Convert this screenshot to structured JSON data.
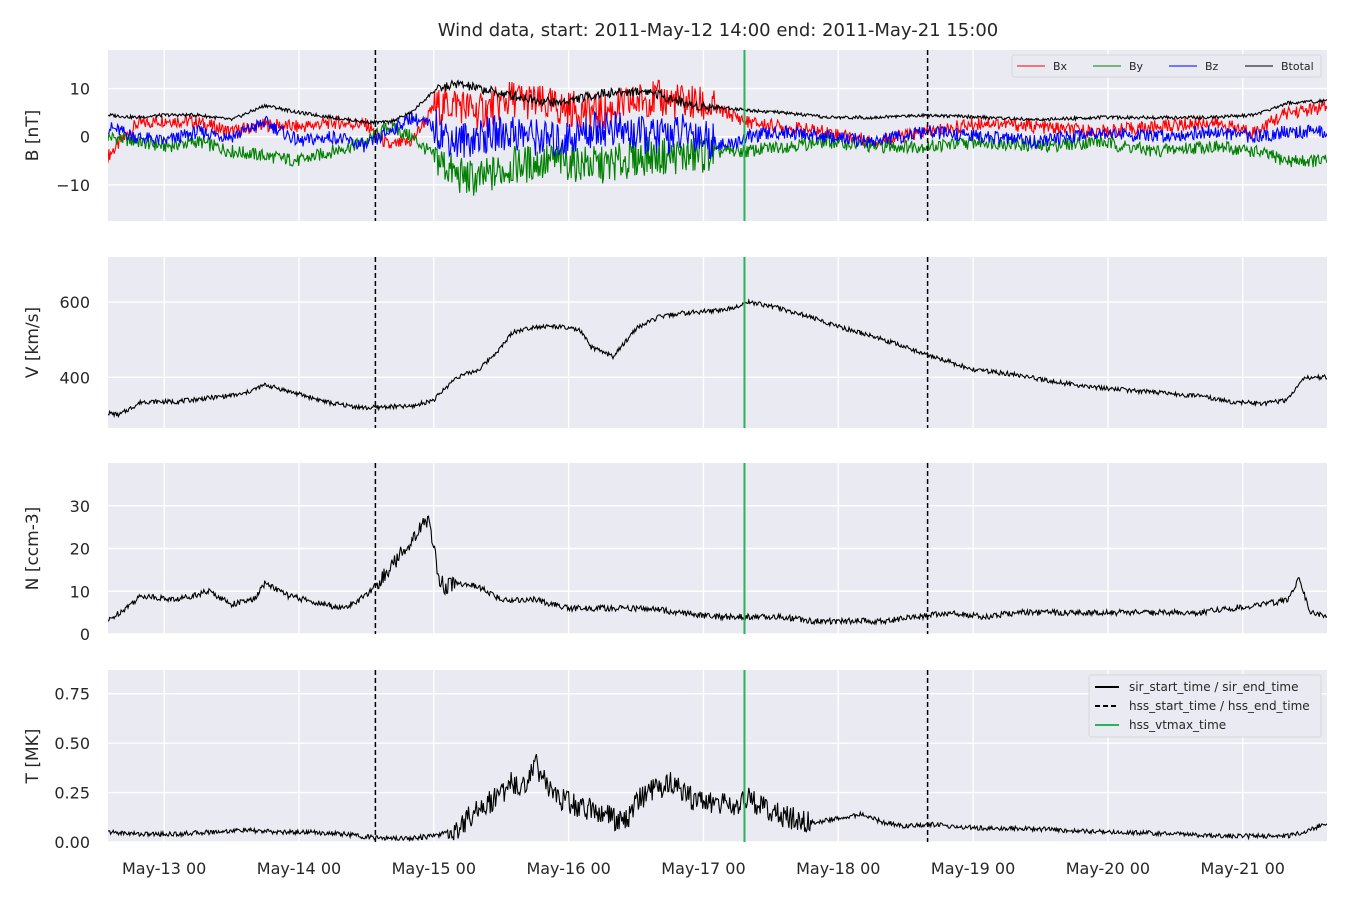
{
  "chart_data": {
    "type": "line",
    "title": "Wind data, start: 2011-May-12 14:00  end: 2011-May-21 15:00",
    "x_ticks": [
      "May-13 00",
      "May-14 00",
      "May-15 00",
      "May-16 00",
      "May-17 00",
      "May-18 00",
      "May-19 00",
      "May-20 00",
      "May-21 00"
    ],
    "x_range_hours": [
      0,
      217
    ],
    "x_tick_hours": [
      10,
      34,
      58,
      82,
      106,
      130,
      154,
      178,
      202
    ],
    "events": [
      {
        "name": "hss_start_time / hss_end_time",
        "hours": [
          47.6,
          145.9
        ],
        "style": "dashed",
        "color": "#000000"
      },
      {
        "name": "hss_vtmax_time",
        "hours": [
          113.3
        ],
        "style": "solid",
        "color": "#2bb35a"
      }
    ],
    "panels": [
      {
        "id": "B",
        "ylabel": "B [nT]",
        "ylim": [
          -17.5,
          18
        ],
        "yticks": [
          -10,
          0,
          10
        ],
        "ytick_labels": [
          "−10",
          "0",
          "10"
        ],
        "legend_position": "top-right",
        "series": [
          {
            "name": "Bx",
            "color": "#ff0000",
            "hours": [
              0,
              5,
              10,
              16,
              22,
              28,
              34,
              40,
              46,
              50,
              54,
              58,
              62,
              66,
              72,
              80,
              88,
              96,
              104,
              110,
              114,
              120,
              128,
              136,
              146,
              156,
              166,
              176,
              186,
              196,
              204,
              210,
              217
            ],
            "values": [
              -4,
              2.5,
              3.5,
              3,
              1,
              2.5,
              2,
              3,
              2.5,
              -2,
              -1,
              6,
              7,
              5,
              8,
              6,
              5,
              8,
              7,
              5,
              3,
              2,
              1,
              -1,
              1,
              3,
              2,
              1,
              2,
              3,
              1,
              5,
              6
            ]
          },
          {
            "name": "By",
            "color": "#008000",
            "hours": [
              0,
              5,
              10,
              16,
              22,
              28,
              34,
              40,
              46,
              50,
              54,
              58,
              62,
              66,
              72,
              80,
              88,
              96,
              104,
              110,
              114,
              120,
              128,
              136,
              146,
              156,
              166,
              176,
              186,
              196,
              204,
              210,
              217
            ],
            "values": [
              0,
              -1,
              -2,
              -1,
              -3,
              -4,
              -5,
              -3,
              -1,
              2,
              0,
              -4,
              -8,
              -9,
              -6,
              -5,
              -6,
              -4,
              -4,
              -3,
              -3,
              -2,
              -1,
              -2,
              -2,
              -1,
              -2,
              -1,
              -3,
              -2,
              -3,
              -5,
              -5
            ]
          },
          {
            "name": "Bz",
            "color": "#0000ff",
            "hours": [
              0,
              5,
              10,
              16,
              22,
              28,
              34,
              40,
              46,
              50,
              54,
              58,
              62,
              66,
              72,
              80,
              88,
              96,
              104,
              110,
              114,
              120,
              128,
              136,
              146,
              156,
              166,
              176,
              186,
              196,
              204,
              210,
              217
            ],
            "values": [
              2,
              0,
              -1,
              1,
              0,
              3,
              -1,
              0,
              -2,
              1,
              4,
              2,
              -1,
              0,
              1,
              -1,
              2,
              0,
              1,
              -2,
              0,
              1,
              0,
              -1,
              1,
              0,
              -1,
              1,
              0,
              1,
              0,
              1,
              1
            ]
          },
          {
            "name": "Btotal",
            "color": "#000000",
            "hours": [
              0,
              5,
              10,
              16,
              22,
              28,
              34,
              40,
              46,
              50,
              54,
              58,
              62,
              66,
              72,
              80,
              88,
              96,
              104,
              110,
              114,
              120,
              128,
              136,
              146,
              156,
              166,
              176,
              186,
              196,
              204,
              210,
              217
            ],
            "values": [
              4.5,
              4,
              4.5,
              4.5,
              3.5,
              6.5,
              5,
              4,
              3,
              3,
              5,
              9.5,
              11,
              10,
              8.5,
              7,
              9,
              9.5,
              6.5,
              6,
              5.5,
              5,
              4,
              4,
              4.5,
              4,
              3.5,
              4,
              4,
              4,
              4.5,
              7,
              7.5
            ]
          }
        ]
      },
      {
        "id": "V",
        "ylabel": "V [km/s]",
        "ylim": [
          265,
          720
        ],
        "yticks": [
          400,
          600
        ],
        "ytick_labels": [
          "400",
          "600"
        ],
        "series": [
          {
            "name": "V",
            "color": "#000000",
            "hours": [
              0,
              2,
              6,
              12,
              18,
              24,
              28,
              34,
              40,
              46,
              50,
              54,
              58,
              62,
              66,
              70,
              72,
              76,
              80,
              84,
              86,
              90,
              94,
              98,
              102,
              106,
              110,
              114,
              118,
              124,
              130,
              136,
              142,
              148,
              154,
              160,
              166,
              172,
              178,
              186,
              194,
              200,
              206,
              210,
              213,
              217
            ],
            "values": [
              305,
              300,
              335,
              335,
              345,
              355,
              380,
              355,
              330,
              318,
              322,
              322,
              340,
              400,
              420,
              480,
              520,
              535,
              535,
              525,
              480,
              455,
              530,
              560,
              570,
              575,
              580,
              600,
              590,
              565,
              535,
              510,
              480,
              450,
              420,
              410,
              395,
              380,
              370,
              360,
              350,
              335,
              330,
              340,
              400,
              400
            ]
          }
        ]
      },
      {
        "id": "N",
        "ylabel": "N [ccm-3]",
        "ylim": [
          0,
          40
        ],
        "yticks": [
          0,
          10,
          20,
          30
        ],
        "ytick_labels": [
          "0",
          "10",
          "20",
          "30"
        ],
        "series": [
          {
            "name": "N",
            "color": "#000000",
            "hours": [
              0,
              3,
              6,
              12,
              18,
              22,
              26,
              28,
              32,
              38,
              42,
              46,
              48,
              50,
              54,
              57,
              59,
              60,
              62,
              66,
              70,
              76,
              82,
              90,
              96,
              102,
              108,
              114,
              120,
              126,
              132,
              138,
              144,
              150,
              156,
              162,
              170,
              178,
              186,
              194,
              200,
              206,
              210,
              212,
              214,
              217
            ],
            "values": [
              3,
              6,
              9,
              8,
              10,
              7,
              8,
              12,
              9,
              7,
              6,
              9,
              12,
              15,
              22,
              27,
              13,
              11,
              12,
              11,
              8,
              8,
              6,
              6,
              6,
              5,
              4,
              4,
              4,
              3,
              3,
              3,
              4,
              5,
              4,
              5,
              5,
              5,
              5,
              5,
              6,
              7,
              8,
              13,
              5,
              4
            ]
          }
        ]
      },
      {
        "id": "T",
        "ylabel": "T [MK]",
        "ylim": [
          0,
          0.87
        ],
        "yticks": [
          0.0,
          0.25,
          0.5,
          0.75
        ],
        "ytick_labels": [
          "0.00",
          "0.25",
          "0.50",
          "0.75"
        ],
        "legend_position": "top-right",
        "legend": [
          "sir_start_time / sir_end_time",
          "hss_start_time / hss_end_time",
          "hss_vtmax_time"
        ],
        "series": [
          {
            "name": "T",
            "color": "#000000",
            "hours": [
              0,
              6,
              12,
              18,
              24,
              30,
              36,
              42,
              48,
              54,
              58,
              62,
              64,
              66,
              68,
              70,
              72,
              74,
              76,
              78,
              80,
              84,
              88,
              90,
              92,
              94,
              96,
              100,
              104,
              108,
              112,
              114,
              118,
              122,
              126,
              130,
              134,
              138,
              142,
              146,
              150,
              156,
              162,
              170,
              180,
              190,
              200,
              206,
              210,
              214,
              217
            ],
            "values": [
              0.05,
              0.04,
              0.04,
              0.05,
              0.06,
              0.05,
              0.05,
              0.04,
              0.02,
              0.02,
              0.03,
              0.06,
              0.12,
              0.18,
              0.2,
              0.25,
              0.3,
              0.28,
              0.4,
              0.3,
              0.22,
              0.18,
              0.15,
              0.12,
              0.1,
              0.2,
              0.25,
              0.3,
              0.22,
              0.2,
              0.18,
              0.22,
              0.15,
              0.12,
              0.1,
              0.12,
              0.14,
              0.1,
              0.08,
              0.09,
              0.08,
              0.07,
              0.07,
              0.06,
              0.05,
              0.04,
              0.03,
              0.03,
              0.03,
              0.06,
              0.1
            ]
          }
        ]
      }
    ]
  }
}
